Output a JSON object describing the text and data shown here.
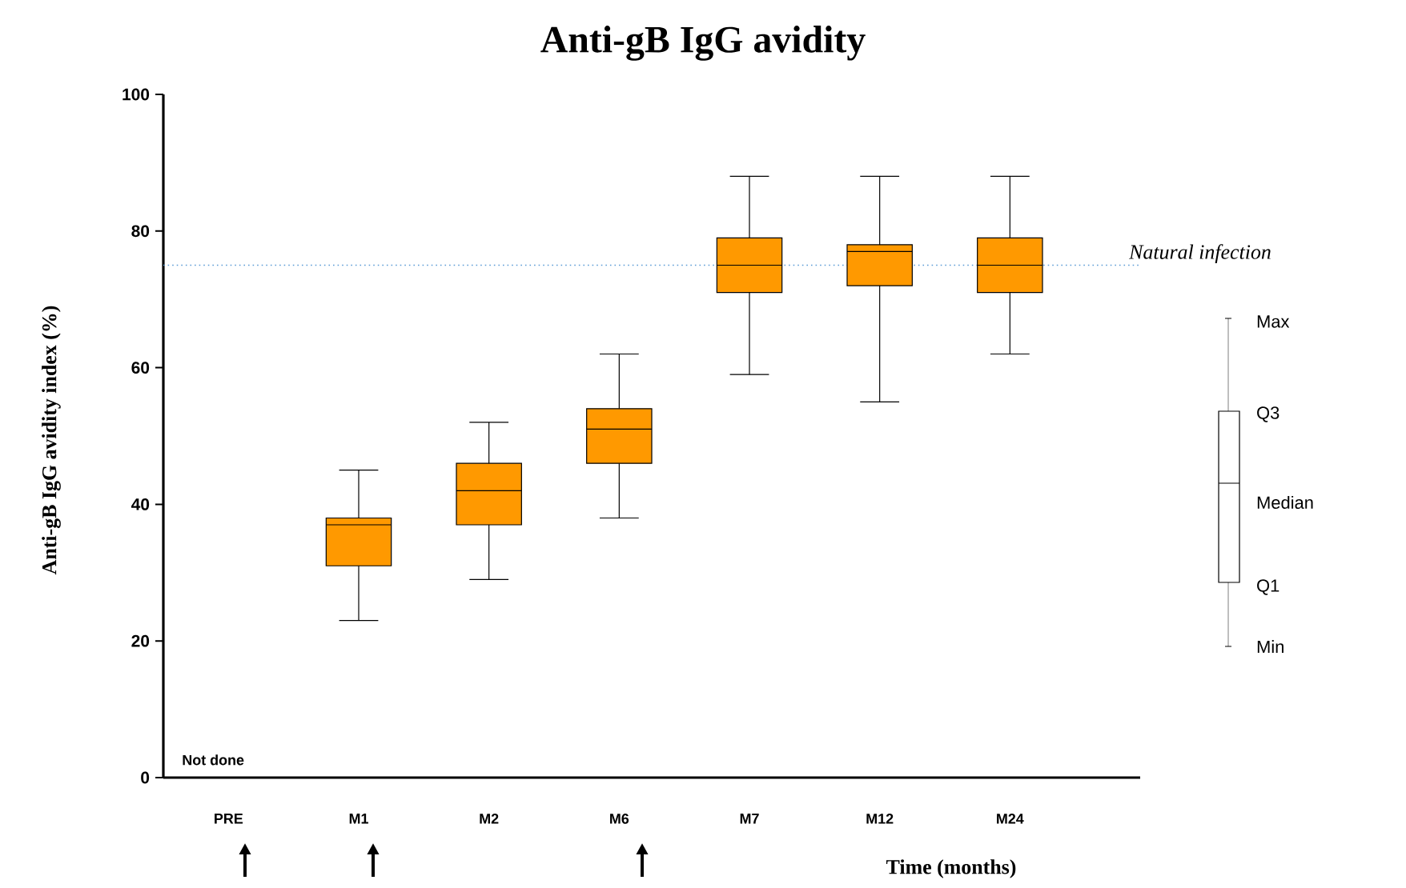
{
  "chart_data": {
    "type": "box",
    "title": "Anti-gB IgG avidity",
    "xlabel": "Time (months)",
    "ylabel": "Anti-gB IgG avidity index (%)",
    "categories": [
      "PRE",
      "M1",
      "M2",
      "M6",
      "M7",
      "M12",
      "M24"
    ],
    "series": [
      {
        "color": "#ff9900",
        "boxes": [
          null,
          {
            "low": 23,
            "q1": 31,
            "median": 37,
            "q3": 38,
            "high": 45
          },
          {
            "low": 29,
            "q1": 37,
            "median": 42,
            "q3": 46,
            "high": 52
          },
          {
            "low": 38,
            "q1": 46,
            "median": 51,
            "q3": 54,
            "high": 62
          },
          {
            "low": 59,
            "q1": 71,
            "median": 75,
            "q3": 79,
            "high": 88
          },
          {
            "low": 55,
            "q1": 72,
            "median": 77,
            "q3": 78,
            "high": 88
          },
          {
            "low": 62,
            "q1": 71,
            "median": 75,
            "q3": 79,
            "high": 88
          }
        ]
      }
    ],
    "ylim": [
      0,
      100
    ],
    "yticks": [
      0,
      20,
      40,
      60,
      80,
      100
    ],
    "ref_lines": [
      {
        "axis": "y",
        "value": 75,
        "label": "Natural infection",
        "color": "#5b9bd5",
        "line_style": "dotted"
      }
    ],
    "annotations": [
      "Not done",
      "Max",
      "Q3",
      "Median",
      "Q1",
      "Min"
    ],
    "grid": false
  }
}
